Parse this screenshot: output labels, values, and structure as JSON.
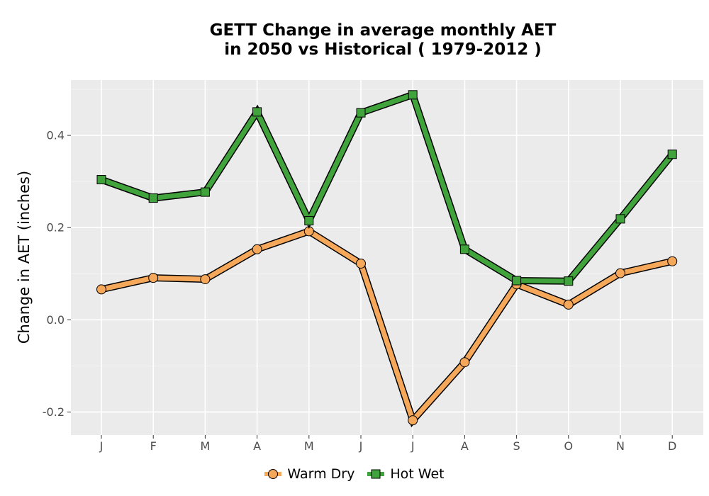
{
  "chart_data": {
    "type": "line",
    "title": "GETT  Change in average monthly AET\nin 2050 vs Historical ( 1979-2012 )",
    "xlabel": "",
    "ylabel": "Change in AET (inches)",
    "categories": [
      "J",
      "F",
      "M",
      "A",
      "M",
      "J",
      "J",
      "A",
      "S",
      "O",
      "N",
      "D"
    ],
    "ylim": [
      -0.25,
      0.52
    ],
    "yticks": [
      -0.2,
      0.0,
      0.2,
      0.4
    ],
    "ytick_labels": [
      "-0.2",
      "0.0",
      "0.2",
      "0.4"
    ],
    "grid": true,
    "legend_position": "bottom",
    "series": [
      {
        "name": "Warm Dry",
        "color": "#f5a75a",
        "marker": "circle",
        "values": [
          0.066,
          0.091,
          0.088,
          0.153,
          0.192,
          0.122,
          -0.218,
          -0.092,
          0.077,
          0.033,
          0.101,
          0.127
        ]
      },
      {
        "name": "Hot Wet",
        "color": "#41a33b",
        "marker": "square",
        "values": [
          0.304,
          0.264,
          0.277,
          0.451,
          0.215,
          0.449,
          0.488,
          0.153,
          0.085,
          0.084,
          0.219,
          0.359
        ]
      }
    ]
  }
}
